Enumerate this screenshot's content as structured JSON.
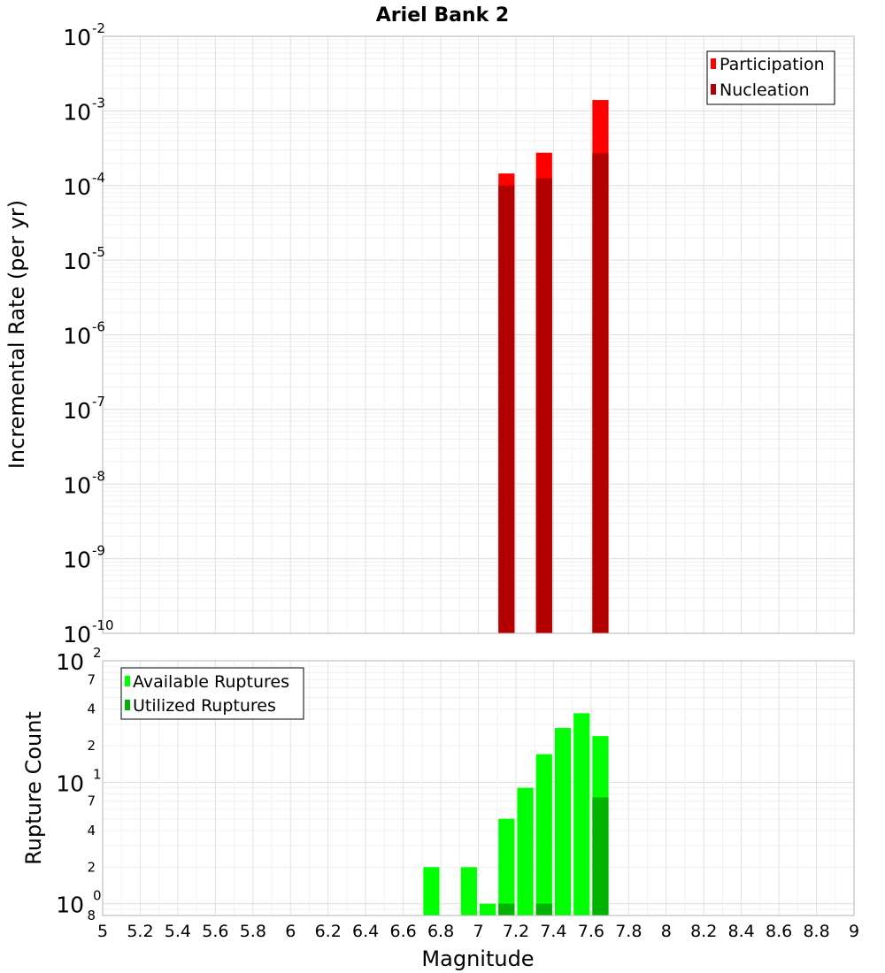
{
  "title": "Ariel Bank 2",
  "chart_data": [
    {
      "type": "bar",
      "name": "rate-chart",
      "xlabel": "Magnitude",
      "ylabel": "Incremental Rate (per yr)",
      "xlim": [
        5,
        9
      ],
      "ylim": [
        1e-10,
        0.01
      ],
      "yscale": "log",
      "bin_width": 0.1,
      "legend_position": "top-right",
      "y_ticks": [
        {
          "base": "10",
          "exp": "-10"
        },
        {
          "base": "10",
          "exp": "-9"
        },
        {
          "base": "10",
          "exp": "-8"
        },
        {
          "base": "10",
          "exp": "-7"
        },
        {
          "base": "10",
          "exp": "-6"
        },
        {
          "base": "10",
          "exp": "-5"
        },
        {
          "base": "10",
          "exp": "-4"
        },
        {
          "base": "10",
          "exp": "-3"
        },
        {
          "base": "10",
          "exp": "-2"
        }
      ],
      "series": [
        {
          "name": "Participation",
          "color": "#ff0000",
          "points": [
            {
              "x": 7.15,
              "y": 0.000145
            },
            {
              "x": 7.35,
              "y": 0.000275
            },
            {
              "x": 7.65,
              "y": 0.0014
            }
          ]
        },
        {
          "name": "Nucleation",
          "color": "#b30000",
          "points": [
            {
              "x": 7.15,
              "y": 0.0001
            },
            {
              "x": 7.35,
              "y": 0.000125
            },
            {
              "x": 7.65,
              "y": 0.00027
            }
          ]
        }
      ]
    },
    {
      "type": "bar",
      "name": "count-chart",
      "xlabel": "Magnitude",
      "ylabel": "Rupture Count",
      "xlim": [
        5,
        9
      ],
      "ylim": [
        0.8,
        100
      ],
      "yscale": "log",
      "bin_width": 0.1,
      "legend_position": "top-left",
      "x_ticks": [
        "5",
        "5.2",
        "5.4",
        "5.6",
        "5.8",
        "6",
        "6.2",
        "6.4",
        "6.6",
        "6.8",
        "7",
        "7.2",
        "7.4",
        "7.6",
        "7.8",
        "8",
        "8.2",
        "8.4",
        "8.6",
        "8.8",
        "9"
      ],
      "y_major_ticks": [
        {
          "value": 1,
          "base": "10",
          "exp": "0"
        },
        {
          "value": 10,
          "base": "10",
          "exp": "1"
        },
        {
          "value": 100,
          "base": "10",
          "exp": "2"
        }
      ],
      "y_minor_ticks": [
        {
          "value": 0.8,
          "label": "8"
        },
        {
          "value": 2,
          "label": "2"
        },
        {
          "value": 4,
          "label": "4"
        },
        {
          "value": 7,
          "label": "7"
        },
        {
          "value": 20,
          "label": "2"
        },
        {
          "value": 40,
          "label": "4"
        },
        {
          "value": 70,
          "label": "7"
        }
      ],
      "series": [
        {
          "name": "Available Ruptures",
          "color": "#00ff00",
          "points": [
            {
              "x": 6.75,
              "y": 2
            },
            {
              "x": 6.95,
              "y": 2
            },
            {
              "x": 7.05,
              "y": 1
            },
            {
              "x": 7.15,
              "y": 5
            },
            {
              "x": 7.25,
              "y": 9
            },
            {
              "x": 7.35,
              "y": 17
            },
            {
              "x": 7.45,
              "y": 28
            },
            {
              "x": 7.55,
              "y": 37
            },
            {
              "x": 7.65,
              "y": 24
            }
          ]
        },
        {
          "name": "Utilized Ruptures",
          "color": "#00b300",
          "points": [
            {
              "x": 7.15,
              "y": 1
            },
            {
              "x": 7.35,
              "y": 1
            },
            {
              "x": 7.65,
              "y": 7.5
            }
          ]
        }
      ]
    }
  ]
}
